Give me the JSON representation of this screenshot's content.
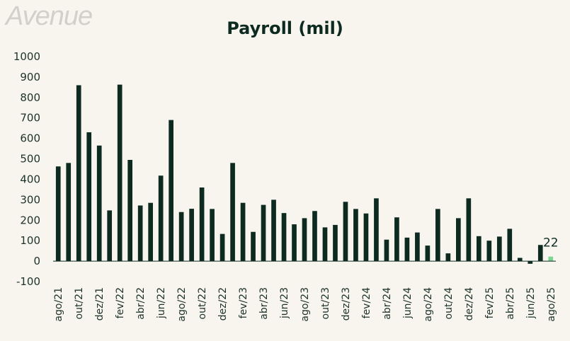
{
  "logo": "Avenue",
  "chart_data": {
    "type": "bar",
    "title": "Payroll  (mil)",
    "xlabel": "",
    "ylabel": "",
    "ylim": [
      -100,
      1000
    ],
    "yticks": [
      1000,
      900,
      800,
      700,
      600,
      500,
      400,
      300,
      200,
      100,
      0,
      -100
    ],
    "grid": false,
    "legend": "none",
    "colors": {
      "bar": "#0c2a20",
      "highlight": "#7dd690",
      "background": "#f8f5ef"
    },
    "categories": [
      "ago/21",
      "set/21",
      "out/21",
      "nov/21",
      "dez/21",
      "jan/22",
      "fev/22",
      "mar/22",
      "abr/22",
      "mai/22",
      "jun/22",
      "jul/22",
      "ago/22",
      "set/22",
      "out/22",
      "nov/22",
      "dez/22",
      "jan/23",
      "fev/23",
      "mar/23",
      "abr/23",
      "mai/23",
      "jun/23",
      "jul/23",
      "ago/23",
      "set/23",
      "out/23",
      "nov/23",
      "dez/23",
      "jan/24",
      "fev/24",
      "mar/24",
      "abr/24",
      "mai/24",
      "jun/24",
      "jul/24",
      "ago/24",
      "set/24",
      "out/24",
      "nov/24",
      "dez/24",
      "jan/25",
      "fev/25",
      "mar/25",
      "abr/25",
      "mai/25",
      "jun/25",
      "jul/25",
      "ago/25"
    ],
    "x_tick_labels": [
      "ago/21",
      "out/21",
      "dez/21",
      "fev/22",
      "abr/22",
      "jun/22",
      "ago/22",
      "out/22",
      "dez/22",
      "fev/23",
      "abr/23",
      "jun/23",
      "ago/23",
      "out/23",
      "dez/23",
      "fev/24",
      "abr/24",
      "jun/24",
      "ago/24",
      "out/24",
      "dez/24",
      "fev/25",
      "abr/25",
      "jun/25",
      "ago/25"
    ],
    "values": [
      463,
      480,
      860,
      630,
      565,
      248,
      863,
      495,
      272,
      285,
      418,
      690,
      240,
      256,
      360,
      255,
      133,
      480,
      285,
      143,
      275,
      300,
      235,
      180,
      210,
      245,
      165,
      177,
      290,
      255,
      233,
      307,
      105,
      214,
      115,
      140,
      76,
      255,
      38,
      210,
      307,
      122,
      100,
      120,
      158,
      16,
      -13,
      79,
      22
    ],
    "highlight_index": 48,
    "data_labels": [
      {
        "category": "ago/25",
        "text": "22"
      }
    ]
  }
}
